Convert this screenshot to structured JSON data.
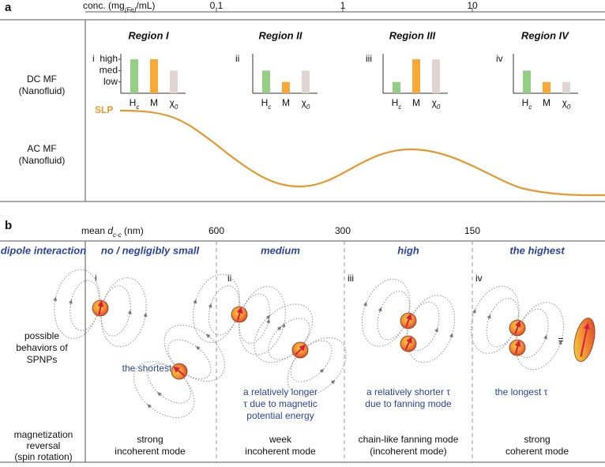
{
  "panel_a": {
    "label": "a",
    "axis_label": [
      "conc. (mg",
      "(Fe)",
      "/mL)"
    ],
    "axis_ticks": [
      "0.1",
      "1",
      "10"
    ],
    "row_labels": [
      [
        "DC MF",
        "(Nanofluid)"
      ],
      [
        "AC MF",
        "(Nanofluid)"
      ]
    ],
    "curve_label": "SLP",
    "levels": [
      {
        "value": 3,
        "label": "high"
      },
      {
        "value": 2,
        "label": "med"
      },
      {
        "value": 1,
        "label": "low"
      }
    ],
    "ylim": [
      0,
      3
    ],
    "bar_labels": [
      [
        "H",
        "c"
      ],
      [
        "M"
      ],
      [
        "χ",
        "0"
      ]
    ],
    "bar_colors": [
      "#95cf84",
      "#f8a937",
      "#e3d4d4"
    ],
    "regions": [
      {
        "title": "Region I",
        "numeral": "i",
        "values": [
          3,
          3,
          2
        ]
      },
      {
        "title": "Region II",
        "numeral": "ii",
        "values": [
          2,
          1,
          2
        ]
      },
      {
        "title": "Region III",
        "numeral": "iii",
        "values": [
          1,
          3,
          3
        ]
      },
      {
        "title": "Region IV",
        "numeral": "iv",
        "values": [
          2,
          1,
          1
        ]
      }
    ]
  },
  "panel_b": {
    "label": "b",
    "axis_label": [
      "mean ",
      "d",
      "c-c",
      " (nm)"
    ],
    "axis_ticks": [
      "600",
      "300",
      "150"
    ],
    "row_labels": [
      [
        "dipole interaction"
      ],
      [
        "possible",
        "behaviors of",
        "SPNPs"
      ],
      [
        "magnetization",
        "reversal",
        "(spin rotation)"
      ]
    ],
    "columns": [
      {
        "header": "no / negligibly small",
        "numeral": "i",
        "note": [
          "the shortest τ"
        ],
        "reversal": [
          "strong",
          "incoherent mode"
        ]
      },
      {
        "header": "medium",
        "numeral": "ii",
        "note": [
          "a relatively longer",
          "τ due to magnetic",
          "potential energy"
        ],
        "reversal": [
          "week",
          "incoherent mode"
        ]
      },
      {
        "header": "high",
        "numeral": "iii",
        "note": [
          "a relatively shorter τ",
          "due to fanning mode"
        ],
        "reversal": [
          "chain-like fanning mode",
          "(incoherent mode)"
        ]
      },
      {
        "header": "the highest",
        "numeral": "iv",
        "note": [
          "the longest τ"
        ],
        "reversal": [
          "strong",
          "coherent mode"
        ]
      }
    ],
    "equals": "="
  }
}
